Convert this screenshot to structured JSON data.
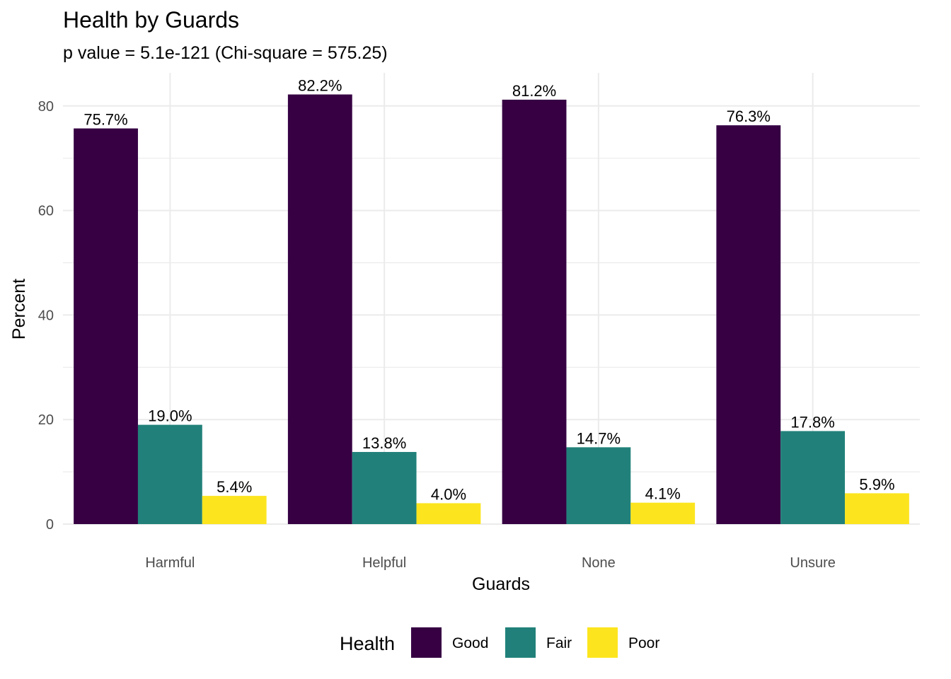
{
  "chart_data": {
    "type": "bar",
    "title": "Health by Guards",
    "subtitle": "p value = 5.1e-121 (Chi-square = 575.25)",
    "xlabel": "Guards",
    "ylabel": "Percent",
    "categories": [
      "Harmful",
      "Helpful",
      "None",
      "Unsure"
    ],
    "ylim": [
      0,
      85
    ],
    "yticks": [
      0,
      20,
      40,
      60,
      80
    ],
    "grid": true,
    "legend_position": "bottom",
    "legend_title": "Health",
    "series": [
      {
        "name": "Good",
        "color": "#360043",
        "values": [
          75.7,
          82.2,
          81.2,
          76.3
        ],
        "labels": [
          "75.7%",
          "82.2%",
          "81.2%",
          "76.3%"
        ]
      },
      {
        "name": "Fair",
        "color": "#21817A",
        "values": [
          19.0,
          13.8,
          14.7,
          17.8
        ],
        "labels": [
          "19.0%",
          "13.8%",
          "14.7%",
          "17.8%"
        ]
      },
      {
        "name": "Poor",
        "color": "#FCE51E",
        "values": [
          5.4,
          4.0,
          4.1,
          5.9
        ],
        "labels": [
          "5.4%",
          "4.0%",
          "4.1%",
          "5.9%"
        ]
      }
    ]
  }
}
